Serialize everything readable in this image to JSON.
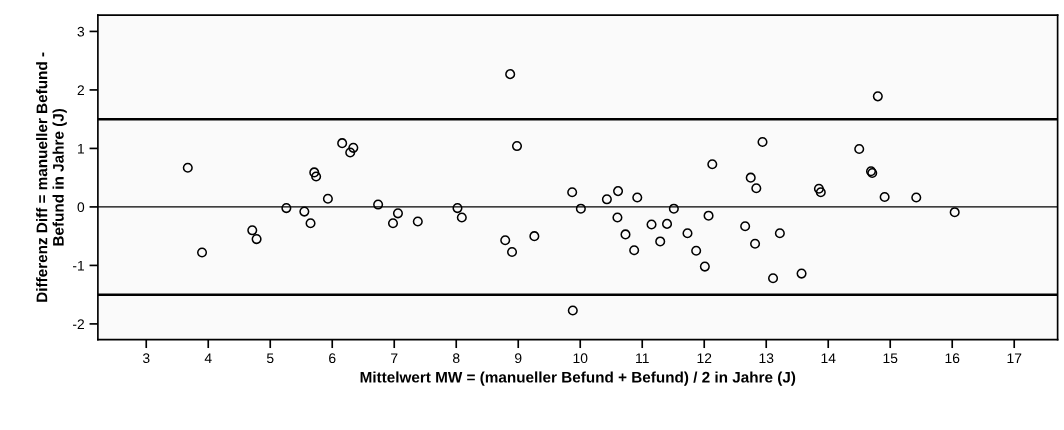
{
  "chart_data": {
    "type": "scatter",
    "xlabel": "Mittelwert MW = (manueller Befund + Befund) / 2 in Jahre (J)",
    "ylabel": "Differenz Diff = manueller Befund -\nBefund in Jahre (J)",
    "x": [
      3.67,
      3.9,
      4.71,
      4.78,
      5.26,
      5.55,
      5.65,
      5.71,
      5.74,
      5.93,
      6.16,
      6.29,
      6.34,
      6.74,
      6.98,
      7.06,
      7.38,
      8.02,
      8.09,
      8.87,
      8.79,
      8.9,
      8.98,
      9.26,
      9.87,
      10.01,
      9.88,
      10.43,
      10.61,
      10.6,
      10.92,
      10.73,
      10.87,
      11.15,
      11.29,
      11.4,
      11.51,
      11.73,
      11.87,
      12.01,
      12.07,
      12.13,
      12.66,
      12.75,
      12.84,
      12.82,
      12.94,
      13.22,
      13.11,
      13.57,
      13.85,
      13.88,
      14.5,
      14.69,
      14.71,
      14.8,
      14.91,
      15.42,
      16.04
    ],
    "series": [
      {
        "color": "#000000",
        "values": [
          0.67,
          -0.78,
          -0.4,
          -0.55,
          -0.02,
          -0.08,
          -0.28,
          0.59,
          0.52,
          0.14,
          1.09,
          0.93,
          1.01,
          0.04,
          -0.28,
          -0.11,
          -0.25,
          -0.02,
          -0.18,
          2.27,
          -0.57,
          -0.77,
          1.04,
          -0.5,
          0.25,
          -0.03,
          -1.77,
          0.13,
          0.27,
          -0.18,
          0.16,
          -0.47,
          -0.74,
          -0.3,
          -0.59,
          -0.29,
          -0.03,
          -0.45,
          -0.75,
          -1.02,
          -0.15,
          0.73,
          -0.33,
          0.5,
          0.32,
          -0.63,
          1.11,
          -0.45,
          -1.22,
          -1.14,
          0.31,
          0.25,
          0.99,
          0.61,
          0.58,
          1.89,
          0.17,
          0.16,
          -0.09
        ]
      }
    ],
    "marker": "circle",
    "xlim": [
      2.22,
      17.7
    ],
    "xticks": [
      3,
      4,
      5,
      6,
      7,
      8,
      9,
      10,
      11,
      12,
      13,
      14,
      15,
      16,
      17
    ],
    "ylim": [
      -2.27,
      3.28
    ],
    "yticks": [
      -2,
      -1,
      0,
      1,
      2,
      3
    ],
    "ref_lines": [
      {
        "axis": "y",
        "value": 0,
        "color": "#000000"
      },
      {
        "axis": "y",
        "value": 1.5,
        "color": "#000000"
      },
      {
        "axis": "y",
        "value": -1.5,
        "color": "#000000"
      }
    ],
    "grid": false,
    "legend": false
  }
}
